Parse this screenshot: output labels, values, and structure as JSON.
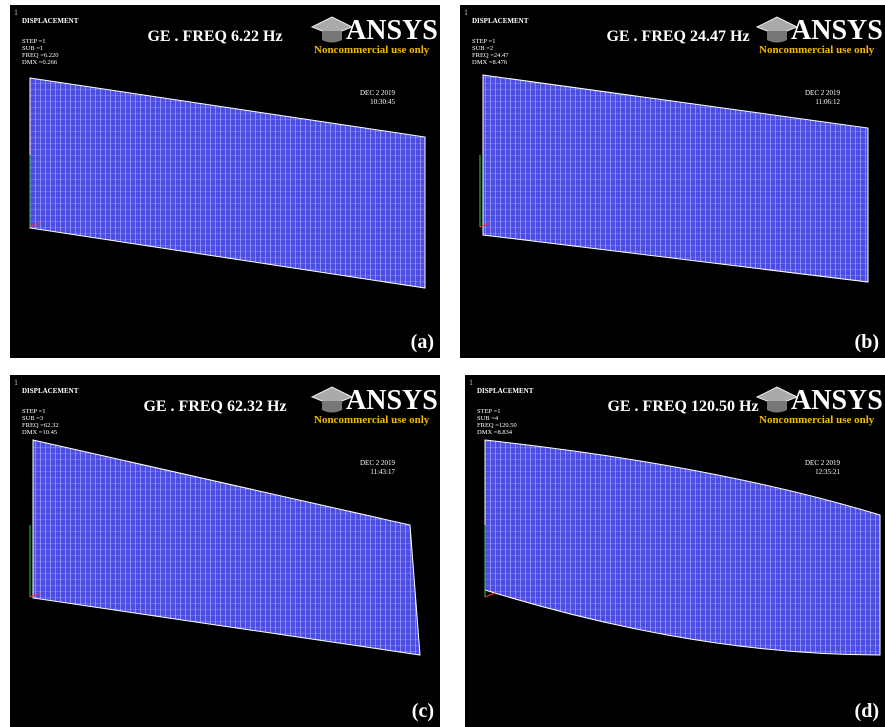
{
  "panels": [
    {
      "corner": "1",
      "header": "DISPLACEMENT",
      "info": [
        "STEP =1",
        "SUB =1",
        "FREQ =6.220",
        "DMX =0.266"
      ],
      "title": "GE . FREQ 6.22 Hz",
      "logo": "ANSYS",
      "logo_note": "Noncommercial use only",
      "date": "DEC  2  2019",
      "time": "10:30:45",
      "label": "(a)"
    },
    {
      "corner": "1",
      "header": "DISPLACEMENT",
      "info": [
        "STEP =1",
        "SUB =2",
        "FREQ =24.47",
        "DMX =8.476"
      ],
      "title": "GE . FREQ 24.47 Hz",
      "logo": "ANSYS",
      "logo_note": "Noncommercial use only",
      "date": "DEC  2  2019",
      "time": "11:06:12",
      "label": "(b)"
    },
    {
      "corner": "1",
      "header": "DISPLACEMENT",
      "info": [
        "STEP =1",
        "SUB =3",
        "FREQ =62.32",
        "DMX =10.45"
      ],
      "title": "GE . FREQ 62.32 Hz",
      "logo": "ANSYS",
      "logo_note": "Noncommercial use only",
      "date": "DEC  2  2019",
      "time": "11:43:17",
      "label": "(c)"
    },
    {
      "corner": "1",
      "header": "DISPLACEMENT",
      "info": [
        "STEP =1",
        "SUB =4",
        "FREQ =120.50",
        "DMX =8.834"
      ],
      "title": "GE . FREQ 120.50 Hz",
      "logo": "ANSYS",
      "logo_note": "Noncommercial use only",
      "date": "DEC  2  2019",
      "time": "12:35:21",
      "label": "(d)"
    }
  ]
}
